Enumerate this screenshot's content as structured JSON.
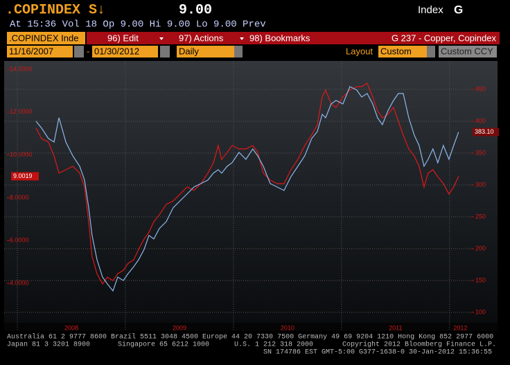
{
  "header": {
    "ticker": ".COPINDEX S↓",
    "price": "9.00",
    "type": "Index",
    "key": "G",
    "quote": "At 15:36 Vol 18 Op 9.00 Hi 9.00 Lo 9.00 Prev"
  },
  "toolbar": {
    "security": ".COPINDEX Inde",
    "edit": "96) Edit",
    "actions": "97) Actions",
    "bookmarks": "98) Bookmarks",
    "page": "G 237 - Copper, Copindex"
  },
  "controls": {
    "start": "11/16/2007",
    "dash": "-",
    "end": "01/30/2012",
    "period": "Daily",
    "layout_label": "Layout",
    "layout": "Custom",
    "currency": "Custom CCY"
  },
  "chart_data": {
    "type": "line",
    "x": [
      2008.173,
      2008.224,
      2008.288,
      2008.34,
      2008.385,
      2008.449,
      2008.513,
      2008.577,
      2008.622,
      2008.66,
      2008.692,
      2008.737,
      2008.788,
      2008.833,
      2008.885,
      2008.929,
      2008.981,
      2009.026,
      2009.077,
      2009.122,
      2009.173,
      2009.218,
      2009.263,
      2009.314,
      2009.378,
      2009.442,
      2009.506,
      2009.571,
      2009.635,
      2009.699,
      2009.763,
      2009.814,
      2009.859,
      2009.891,
      2009.942,
      2009.987,
      2010.051,
      2010.115,
      2010.179,
      2010.224,
      2010.276,
      2010.34,
      2010.404,
      2010.468,
      2010.532,
      2010.596,
      2010.66,
      2010.724,
      2010.776,
      2010.821,
      2010.853,
      2010.904,
      2010.949,
      2011.013,
      2011.077,
      2011.141,
      2011.186,
      2011.237,
      2011.288,
      2011.333,
      2011.378,
      2011.429,
      2011.481,
      2011.526,
      2011.571,
      2011.622,
      2011.673,
      2011.718,
      2011.763,
      2011.801,
      2011.846,
      2011.891,
      2011.942,
      2011.994,
      2012.038,
      2012.083
    ],
    "series": [
      {
        "color": "#e01818",
        "values": [
          11.25,
          10.76,
          10.6,
          9.95,
          9.15,
          9.31,
          9.47,
          9.15,
          8.5,
          6.88,
          5.26,
          4.45,
          3.97,
          4.29,
          4.13,
          4.45,
          4.61,
          4.94,
          5.1,
          5.59,
          6.07,
          6.39,
          6.88,
          7.2,
          7.69,
          7.85,
          8.17,
          8.5,
          8.34,
          8.66,
          9.15,
          9.63,
          10.44,
          9.79,
          10.12,
          10.44,
          10.28,
          10.28,
          10.44,
          10.12,
          9.15,
          8.82,
          8.66,
          8.66,
          9.31,
          9.79,
          10.44,
          10.93,
          11.41,
          12.71,
          13.03,
          12.38,
          12.22,
          12.71,
          13.03,
          13.19,
          13.19,
          13.35,
          12.71,
          12.06,
          11.73,
          11.9,
          12.22,
          11.57,
          10.93,
          10.28,
          9.95,
          9.47,
          8.5,
          9.15,
          9.31,
          8.98,
          8.66,
          8.17,
          8.5,
          9.0019
        ]
      },
      {
        "color": "#8fb8ee",
        "axis": "y2",
        "last_label": "383.10",
        "values": [
          400,
          389.1,
          372.8,
          367.4,
          405.4,
          367.4,
          345.7,
          329.3,
          307.6,
          264.1,
          220.7,
          182.6,
          155.4,
          144.6,
          133.7,
          155.4,
          150,
          160.9,
          171.7,
          182.6,
          198.9,
          220.7,
          215.2,
          231.5,
          242.4,
          264.1,
          275,
          285.9,
          296.7,
          302.2,
          307.6,
          318.5,
          323.9,
          318.5,
          329.3,
          334.8,
          351.1,
          340.2,
          356.5,
          345.7,
          329.3,
          302.2,
          296.7,
          291.3,
          313,
          329.3,
          345.7,
          372.8,
          383.7,
          410.9,
          405.4,
          427.2,
          432.6,
          427.2,
          454.3,
          448.9,
          438,
          443.5,
          427.2,
          405.4,
          394.6,
          416.3,
          432.6,
          443.5,
          443.5,
          405.4,
          378.3,
          362,
          329.3,
          340.2,
          356.5,
          334.8,
          362,
          340.2,
          362,
          383.1
        ]
      }
    ],
    "xlim": [
      2007.878,
      2012.2
    ],
    "xticks": [
      2008,
      2009,
      2010,
      2011,
      2012
    ],
    "ylim": [
      2.03,
      14.39
    ],
    "yticks": [
      {
        "value": 4,
        "label": "4.0000"
      },
      {
        "value": 6,
        "label": "6.0000"
      },
      {
        "value": 8,
        "label": "8.0000"
      },
      {
        "value": 10,
        "label": "10.0000"
      },
      {
        "value": 12,
        "label": "12.0000"
      },
      {
        "value": 14,
        "label": "14.0000"
      }
    ],
    "y2lim": [
      79.3,
      494.6
    ],
    "y2ticks": [
      100,
      150,
      200,
      250,
      300,
      350,
      400,
      450
    ],
    "grid": true
  },
  "footer": {
    "line1": "Australia 61 2 9777 8600 Brazil 5511 3048 4500 Europe 44 20 7330 7500 Germany 49 69 9204 1210 Hong Kong 852 2977 6000",
    "japan": "Japan 81 3 3201 8900",
    "singapore": "Singapore 65 6212 1000",
    "us": "U.S. 1 212 318 2000",
    "copyright": "Copyright 2012 Bloomberg Finance L.P.",
    "line3": "SN 174786 EST  GMT-5:00 G377-1638-0 30-Jan-2012 15:36:55"
  }
}
